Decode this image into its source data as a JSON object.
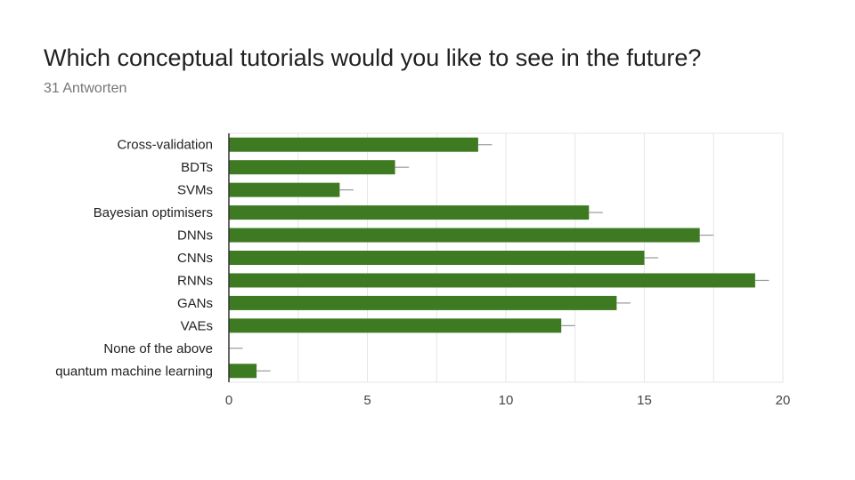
{
  "header": {
    "title": "Which conceptual tutorials would you like to see in the future?",
    "subtitle": "31 Antworten"
  },
  "colors": {
    "bar": "#3e7a22",
    "whisker": "#999999",
    "grid": "#e6e6e6",
    "axis": "#333333",
    "label": "#222222",
    "tick": "#444444"
  },
  "chart_data": {
    "type": "bar",
    "orientation": "horizontal",
    "categories": [
      "Cross-validation",
      "BDTs",
      "SVMs",
      "Bayesian optimisers",
      "DNNs",
      "CNNs",
      "RNNs",
      "GANs",
      "VAEs",
      "None of the above",
      "quantum machine learning"
    ],
    "values": [
      9,
      6,
      4,
      13,
      17,
      15,
      19,
      14,
      12,
      0,
      1
    ],
    "error": 0.5,
    "xlim": [
      0,
      20
    ],
    "xticks": [
      0,
      5,
      10,
      15,
      20
    ],
    "title": "Which conceptual tutorials would you like to see in the future?",
    "grid": true
  }
}
